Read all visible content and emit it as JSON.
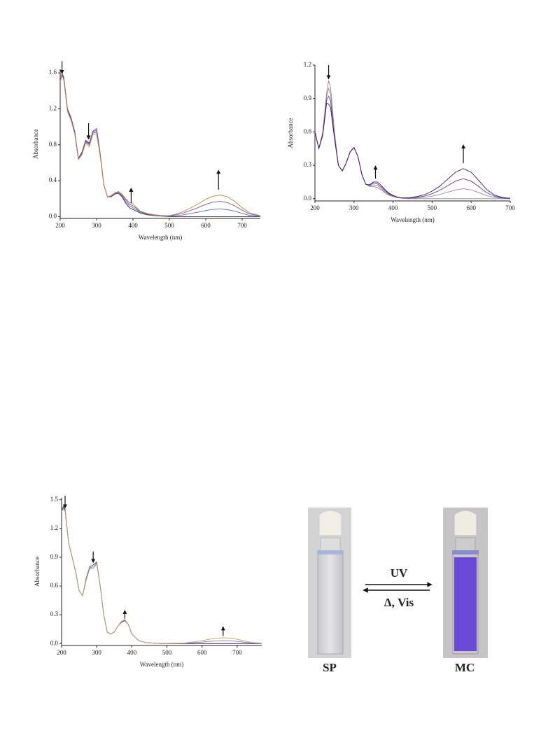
{
  "chart_data": [
    {
      "type": "line",
      "xlabel": "Wavelength (nm)",
      "ylabel": "Absorbance",
      "xlim": [
        200,
        750
      ],
      "ylim": [
        -0.02,
        1.64
      ],
      "xticks": [
        200,
        300,
        400,
        500,
        600,
        700
      ],
      "yticks": [
        {
          "value": 0,
          "label": "0.0"
        },
        0.4,
        0.8,
        1.2,
        1.6
      ],
      "x": [
        200,
        205,
        210,
        220,
        230,
        240,
        250,
        260,
        270,
        280,
        290,
        300,
        310,
        320,
        330,
        340,
        350,
        360,
        370,
        380,
        390,
        400,
        410,
        420,
        440,
        460,
        480,
        500,
        520,
        540,
        560,
        580,
        600,
        620,
        640,
        660,
        680,
        700,
        720,
        750
      ],
      "series": [
        {
          "color": "#3b2a6e",
          "values": [
            1.5,
            1.6,
            1.55,
            1.2,
            1.1,
            0.95,
            0.65,
            0.72,
            0.85,
            0.82,
            0.95,
            0.98,
            0.7,
            0.35,
            0.22,
            0.22,
            0.25,
            0.26,
            0.22,
            0.15,
            0.1,
            0.08,
            0.06,
            0.04,
            0.02,
            0.01,
            0.005,
            0,
            0,
            0,
            0,
            0,
            0,
            0,
            0,
            0,
            0,
            0,
            0,
            0
          ]
        },
        {
          "color": "#4a6fc0",
          "values": [
            1.5,
            1.59,
            1.54,
            1.19,
            1.09,
            0.94,
            0.645,
            0.71,
            0.84,
            0.81,
            0.94,
            0.96,
            0.69,
            0.35,
            0.22,
            0.225,
            0.255,
            0.265,
            0.23,
            0.17,
            0.12,
            0.1,
            0.075,
            0.05,
            0.025,
            0.012,
            0.007,
            0.005,
            0.01,
            0.021,
            0.036,
            0.051,
            0.068,
            0.081,
            0.085,
            0.078,
            0.06,
            0.036,
            0.015,
            0.003
          ]
        },
        {
          "color": "#8a5a9a",
          "values": [
            1.5,
            1.58,
            1.53,
            1.18,
            1.08,
            0.93,
            0.64,
            0.7,
            0.83,
            0.8,
            0.93,
            0.94,
            0.68,
            0.35,
            0.22,
            0.23,
            0.26,
            0.27,
            0.24,
            0.19,
            0.14,
            0.12,
            0.09,
            0.055,
            0.03,
            0.015,
            0.01,
            0.009,
            0.02,
            0.043,
            0.071,
            0.102,
            0.136,
            0.162,
            0.17,
            0.156,
            0.119,
            0.071,
            0.031,
            0.007
          ]
        },
        {
          "color": "#c08a40",
          "values": [
            1.5,
            1.57,
            1.52,
            1.17,
            1.07,
            0.92,
            0.635,
            0.69,
            0.82,
            0.78,
            0.92,
            0.92,
            0.67,
            0.35,
            0.22,
            0.235,
            0.265,
            0.28,
            0.25,
            0.2,
            0.16,
            0.14,
            0.1,
            0.06,
            0.035,
            0.02,
            0.013,
            0.012,
            0.029,
            0.06,
            0.1,
            0.144,
            0.192,
            0.228,
            0.24,
            0.221,
            0.168,
            0.101,
            0.043,
            0.01
          ]
        }
      ],
      "arrows": [
        {
          "x": 205,
          "from": 1.73,
          "to": 1.61
        },
        {
          "x": 278,
          "from": 1.04,
          "to": 0.88
        },
        {
          "x": 395,
          "from": 0.15,
          "to": 0.3
        },
        {
          "x": 635,
          "from": 0.3,
          "to": 0.5
        }
      ]
    },
    {
      "type": "line",
      "xlabel": "Wavelength (nm)",
      "ylabel": "Absorbance",
      "xlim": [
        200,
        700
      ],
      "ylim": [
        -0.02,
        1.2
      ],
      "xticks": [
        200,
        300,
        400,
        500,
        600,
        700
      ],
      "yticks": [
        {
          "value": 0,
          "label": "0.0"
        },
        0.3,
        0.6,
        0.9,
        1.2
      ],
      "x": [
        200,
        210,
        220,
        230,
        235,
        240,
        250,
        260,
        270,
        280,
        290,
        300,
        310,
        320,
        330,
        340,
        350,
        360,
        370,
        380,
        390,
        400,
        410,
        420,
        440,
        460,
        480,
        500,
        520,
        540,
        560,
        580,
        600,
        620,
        640,
        660,
        680,
        700
      ],
      "series": [
        {
          "color": "#888888",
          "values": [
            0.6,
            0.45,
            0.6,
            0.95,
            1.06,
            1.0,
            0.6,
            0.3,
            0.25,
            0.32,
            0.42,
            0.46,
            0.38,
            0.22,
            0.13,
            0.11,
            0.11,
            0.1,
            0.08,
            0.05,
            0.03,
            0.02,
            0.01,
            0.005,
            0,
            0,
            0,
            0,
            0,
            0,
            0,
            0,
            0,
            0,
            0,
            0,
            0,
            0
          ]
        },
        {
          "color": "#9a8aa8",
          "values": [
            0.6,
            0.45,
            0.59,
            0.92,
            0.99,
            0.94,
            0.58,
            0.3,
            0.25,
            0.32,
            0.42,
            0.46,
            0.38,
            0.22,
            0.13,
            0.115,
            0.125,
            0.117,
            0.093,
            0.06,
            0.036,
            0.023,
            0.012,
            0.006,
            0.003,
            0.006,
            0.012,
            0.023,
            0.038,
            0.059,
            0.079,
            0.09,
            0.079,
            0.054,
            0.027,
            0.011,
            0.004,
            0.001
          ]
        },
        {
          "color": "#6a3c9a",
          "values": [
            0.6,
            0.45,
            0.58,
            0.89,
            0.92,
            0.88,
            0.56,
            0.3,
            0.25,
            0.32,
            0.42,
            0.46,
            0.38,
            0.22,
            0.13,
            0.12,
            0.14,
            0.133,
            0.105,
            0.07,
            0.042,
            0.026,
            0.014,
            0.007,
            0.005,
            0.013,
            0.023,
            0.045,
            0.076,
            0.117,
            0.158,
            0.18,
            0.158,
            0.108,
            0.054,
            0.022,
            0.007,
            0.002
          ]
        },
        {
          "color": "#3a1a6a",
          "values": [
            0.6,
            0.45,
            0.57,
            0.86,
            0.85,
            0.82,
            0.54,
            0.3,
            0.25,
            0.32,
            0.42,
            0.46,
            0.38,
            0.22,
            0.13,
            0.125,
            0.15,
            0.15,
            0.118,
            0.08,
            0.048,
            0.03,
            0.016,
            0.008,
            0.008,
            0.019,
            0.035,
            0.068,
            0.113,
            0.176,
            0.238,
            0.27,
            0.238,
            0.162,
            0.081,
            0.032,
            0.011,
            0.003
          ]
        }
      ],
      "arrows": [
        {
          "x": 235,
          "from": 1.2,
          "to": 1.09
        },
        {
          "x": 355,
          "from": 0.18,
          "to": 0.28
        },
        {
          "x": 580,
          "from": 0.32,
          "to": 0.47
        }
      ]
    },
    {
      "type": "line",
      "xlabel": "Wavelength (nm)",
      "ylabel": "Absorbance",
      "xlim": [
        200,
        770
      ],
      "ylim": [
        -0.02,
        1.52
      ],
      "xticks": [
        200,
        300,
        400,
        500,
        600,
        700
      ],
      "yticks": [
        {
          "value": 0,
          "label": "0.0"
        },
        0.3,
        0.6,
        0.9,
        1.2,
        1.5
      ],
      "x": [
        200,
        205,
        210,
        220,
        230,
        240,
        250,
        260,
        270,
        280,
        290,
        300,
        310,
        320,
        330,
        340,
        350,
        360,
        370,
        380,
        390,
        400,
        420,
        440,
        460,
        480,
        500,
        550,
        600,
        620,
        640,
        660,
        680,
        700,
        720,
        740,
        770
      ],
      "series": [
        {
          "color": "#3a2a6e",
          "values": [
            1.38,
            1.43,
            1.4,
            1.05,
            0.9,
            0.75,
            0.55,
            0.5,
            0.68,
            0.8,
            0.82,
            0.85,
            0.6,
            0.3,
            0.12,
            0.1,
            0.12,
            0.18,
            0.22,
            0.24,
            0.2,
            0.1,
            0.03,
            0.01,
            0.005,
            0,
            0,
            0,
            0,
            0,
            0,
            0,
            0,
            0,
            0,
            0,
            0
          ]
        },
        {
          "color": "#8a7ab0",
          "values": [
            1.38,
            1.415,
            1.39,
            1.05,
            0.9,
            0.75,
            0.55,
            0.5,
            0.67,
            0.79,
            0.8,
            0.84,
            0.6,
            0.3,
            0.12,
            0.1,
            0.12,
            0.18,
            0.225,
            0.245,
            0.2,
            0.1,
            0.03,
            0.01,
            0.005,
            0,
            0.001,
            0.003,
            0.015,
            0.023,
            0.028,
            0.03,
            0.029,
            0.023,
            0.014,
            0.006,
            0.002
          ]
        },
        {
          "color": "#b8a060",
          "values": [
            1.38,
            1.4,
            1.38,
            1.05,
            0.9,
            0.75,
            0.55,
            0.5,
            0.66,
            0.78,
            0.78,
            0.83,
            0.6,
            0.3,
            0.12,
            0.1,
            0.12,
            0.18,
            0.23,
            0.25,
            0.2,
            0.1,
            0.03,
            0.01,
            0.005,
            0,
            0.002,
            0.006,
            0.03,
            0.045,
            0.055,
            0.06,
            0.057,
            0.045,
            0.027,
            0.012,
            0.003
          ]
        }
      ],
      "arrows": [
        {
          "x": 210,
          "from": 1.54,
          "to": 1.43
        },
        {
          "x": 290,
          "from": 0.96,
          "to": 0.86
        },
        {
          "x": 380,
          "from": 0.26,
          "to": 0.33
        },
        {
          "x": 660,
          "from": 0.08,
          "to": 0.16
        }
      ]
    }
  ],
  "scheme": {
    "left_label": "SP",
    "right_label": "MC",
    "forward": "UV",
    "reverse": "Δ, Vis"
  }
}
